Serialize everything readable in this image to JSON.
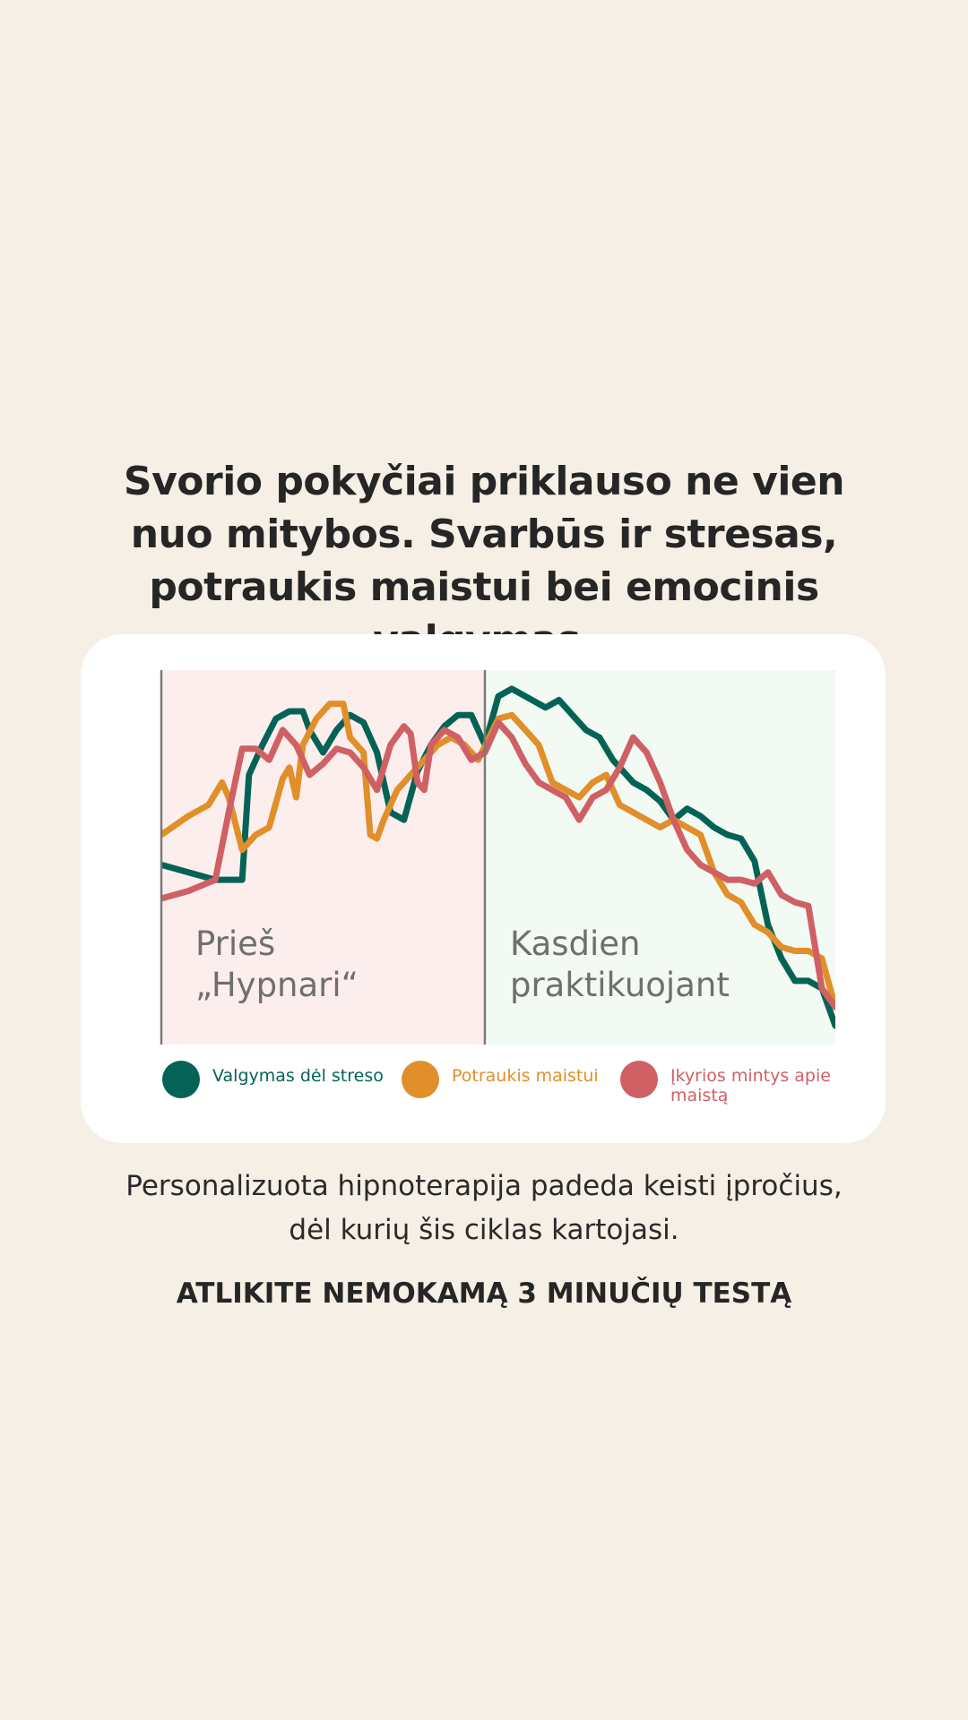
{
  "headline": "Svorio pokyčiai priklauso ne vien nuo mitybos. Svarbūs ir stresas, potraukis maistui bei emocinis valgymas.",
  "subtext": "Personalizuota hipnoterapija padeda keisti įpročius, dėl kurių šis ciklas kartojasi.",
  "cta_label": "ATLIKITE NEMOKAMĄ 3 MINUČIŲ TESTĄ",
  "colors": {
    "background": "#f6efe5",
    "card": "#ffffff",
    "before_bg": "#fdeeee",
    "after_bg": "#f3f9f3",
    "teal": "#046355",
    "orange": "#e08f2a",
    "red": "#cf6064"
  },
  "chart_data": {
    "type": "line",
    "title": "",
    "xlabel": "",
    "ylabel": "",
    "xlim": [
      0,
      100
    ],
    "ylim": [
      0,
      100
    ],
    "grid": false,
    "legend_placement": "bottom",
    "phases": [
      {
        "name": "before",
        "label_lines": [
          "Prieš",
          "„Hypnari“"
        ],
        "x_start": 0,
        "x_end": 48
      },
      {
        "name": "after",
        "label_lines": [
          "Kasdien",
          "praktikuojant"
        ],
        "x_start": 48,
        "x_end": 100
      }
    ],
    "series": [
      {
        "name": "Valgymas dėl streso",
        "color": "#046355",
        "points": [
          [
            0,
            48
          ],
          [
            4,
            46
          ],
          [
            8,
            44
          ],
          [
            12,
            44
          ],
          [
            13,
            72
          ],
          [
            15,
            80
          ],
          [
            17,
            87
          ],
          [
            19,
            89
          ],
          [
            21,
            89
          ],
          [
            22,
            84
          ],
          [
            24,
            78
          ],
          [
            26,
            84
          ],
          [
            28,
            88
          ],
          [
            30,
            86
          ],
          [
            32,
            78
          ],
          [
            34,
            62
          ],
          [
            36,
            60
          ],
          [
            38,
            73
          ],
          [
            40,
            80
          ],
          [
            42,
            85
          ],
          [
            44,
            88
          ],
          [
            46,
            88
          ],
          [
            48,
            80
          ],
          [
            50,
            93
          ],
          [
            52,
            95
          ],
          [
            53,
            94
          ],
          [
            55,
            92
          ],
          [
            57,
            90
          ],
          [
            59,
            92
          ],
          [
            61,
            88
          ],
          [
            63,
            84
          ],
          [
            65,
            82
          ],
          [
            67,
            76
          ],
          [
            68,
            74
          ],
          [
            70,
            70
          ],
          [
            72,
            68
          ],
          [
            74,
            65
          ],
          [
            76,
            60
          ],
          [
            78,
            63
          ],
          [
            80,
            61
          ],
          [
            82,
            58
          ],
          [
            84,
            56
          ],
          [
            86,
            55
          ],
          [
            88,
            49
          ],
          [
            90,
            32
          ],
          [
            92,
            23
          ],
          [
            94,
            17
          ],
          [
            96,
            17
          ],
          [
            98,
            15
          ],
          [
            100,
            5
          ]
        ]
      },
      {
        "name": "Potraukis maistui",
        "color": "#e08f2a",
        "points": [
          [
            0,
            56
          ],
          [
            4,
            61
          ],
          [
            7,
            64
          ],
          [
            9,
            70
          ],
          [
            10,
            66
          ],
          [
            12,
            52
          ],
          [
            14,
            56
          ],
          [
            16,
            58
          ],
          [
            18,
            71
          ],
          [
            19,
            74
          ],
          [
            20,
            66
          ],
          [
            21,
            80
          ],
          [
            23,
            87
          ],
          [
            25,
            91
          ],
          [
            27,
            91
          ],
          [
            28,
            82
          ],
          [
            30,
            78
          ],
          [
            31,
            56
          ],
          [
            32,
            55
          ],
          [
            33,
            60
          ],
          [
            35,
            68
          ],
          [
            37,
            72
          ],
          [
            39,
            76
          ],
          [
            41,
            80
          ],
          [
            43,
            82
          ],
          [
            45,
            80
          ],
          [
            47,
            76
          ],
          [
            50,
            87
          ],
          [
            52,
            88
          ],
          [
            53,
            86
          ],
          [
            56,
            80
          ],
          [
            58,
            70
          ],
          [
            60,
            68
          ],
          [
            62,
            66
          ],
          [
            64,
            70
          ],
          [
            66,
            72
          ],
          [
            68,
            64
          ],
          [
            70,
            62
          ],
          [
            72,
            60
          ],
          [
            74,
            58
          ],
          [
            76,
            60
          ],
          [
            78,
            58
          ],
          [
            80,
            56
          ],
          [
            82,
            46
          ],
          [
            84,
            40
          ],
          [
            86,
            38
          ],
          [
            88,
            32
          ],
          [
            90,
            30
          ],
          [
            92,
            26
          ],
          [
            94,
            25
          ],
          [
            96,
            25
          ],
          [
            98,
            23
          ],
          [
            100,
            10
          ]
        ]
      },
      {
        "name": "Įkyrios mintys apie maistą",
        "color": "#cf6064",
        "points": [
          [
            0,
            39
          ],
          [
            4,
            41
          ],
          [
            8,
            44
          ],
          [
            10,
            62
          ],
          [
            12,
            79
          ],
          [
            14,
            79
          ],
          [
            16,
            76
          ],
          [
            18,
            84
          ],
          [
            20,
            80
          ],
          [
            22,
            72
          ],
          [
            24,
            75
          ],
          [
            26,
            79
          ],
          [
            28,
            78
          ],
          [
            30,
            74
          ],
          [
            32,
            68
          ],
          [
            34,
            80
          ],
          [
            36,
            85
          ],
          [
            37,
            83
          ],
          [
            38,
            70
          ],
          [
            39,
            68
          ],
          [
            40,
            80
          ],
          [
            42,
            84
          ],
          [
            44,
            82
          ],
          [
            46,
            76
          ],
          [
            48,
            78
          ],
          [
            50,
            86
          ],
          [
            52,
            82
          ],
          [
            54,
            75
          ],
          [
            56,
            70
          ],
          [
            58,
            68
          ],
          [
            60,
            66
          ],
          [
            62,
            60
          ],
          [
            64,
            66
          ],
          [
            66,
            68
          ],
          [
            68,
            74
          ],
          [
            70,
            82
          ],
          [
            72,
            78
          ],
          [
            74,
            70
          ],
          [
            76,
            60
          ],
          [
            78,
            52
          ],
          [
            80,
            48
          ],
          [
            82,
            46
          ],
          [
            84,
            44
          ],
          [
            86,
            44
          ],
          [
            88,
            43
          ],
          [
            90,
            46
          ],
          [
            92,
            40
          ],
          [
            94,
            38
          ],
          [
            96,
            37
          ],
          [
            98,
            15
          ],
          [
            100,
            10
          ]
        ]
      }
    ]
  }
}
